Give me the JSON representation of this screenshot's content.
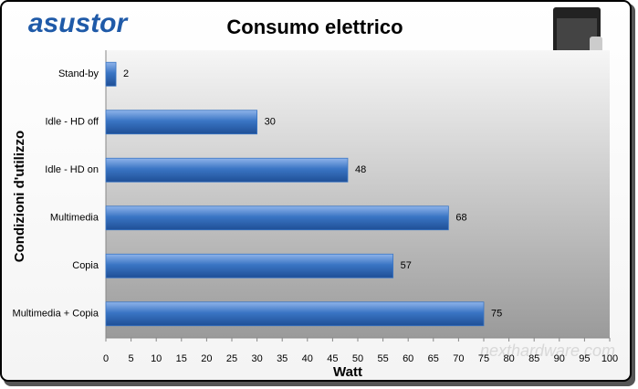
{
  "logo": "asustor",
  "watermark": "nexthardware.com",
  "chart_data": {
    "type": "bar",
    "orientation": "horizontal",
    "title": "Consumo elettrico",
    "x_label": "Watt",
    "y_label": "Condizioni d'utilizzo",
    "categories": [
      "Stand-by",
      "Idle - HD off",
      "Idle - HD on",
      "Multimedia",
      "Copia",
      "Multimedia + Copia"
    ],
    "values": [
      2,
      30,
      48,
      68,
      57,
      75
    ],
    "color": "#3a75c4",
    "xlim": [
      0,
      100
    ],
    "xticks": [
      0,
      5,
      10,
      15,
      20,
      25,
      30,
      35,
      40,
      45,
      50,
      55,
      60,
      65,
      70,
      75,
      80,
      85,
      90,
      95,
      100
    ],
    "grid": false
  }
}
